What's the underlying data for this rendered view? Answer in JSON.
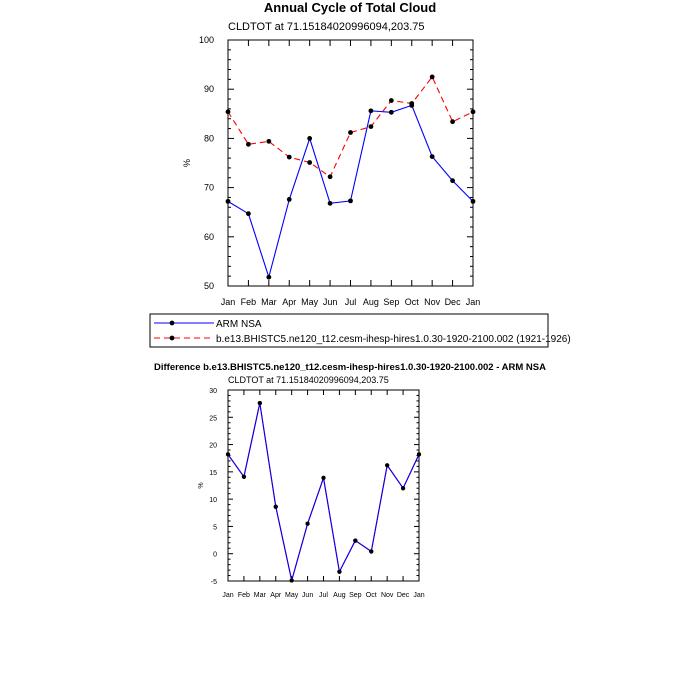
{
  "chart_data": [
    {
      "type": "line",
      "title": "Annual Cycle of Total Cloud",
      "subtitle": "CLDTOT at 71.15184020996094,203.75",
      "xlabel": "",
      "ylabel": "%",
      "categories": [
        "Jan",
        "Feb",
        "Mar",
        "Apr",
        "May",
        "Jun",
        "Jul",
        "Aug",
        "Sep",
        "Oct",
        "Nov",
        "Dec",
        "Jan"
      ],
      "ylim": [
        50,
        100
      ],
      "yticks": [
        50,
        60,
        70,
        80,
        90,
        100
      ],
      "series": [
        {
          "name": "ARM NSA",
          "color": "#0000ff",
          "dash": "solid",
          "values": [
            67.2,
            64.7,
            51.8,
            67.6,
            80.0,
            66.8,
            67.3,
            85.6,
            85.3,
            86.7,
            76.3,
            71.4,
            67.2
          ]
        },
        {
          "name": "b.e13.BHISTC5.ne120_t12.cesm-ihesp-hires1.0.30-1920-2100.002 (1921-1926)",
          "color": "#ff0000",
          "dash": "dashed",
          "values": [
            85.4,
            78.8,
            79.4,
            76.2,
            75.1,
            72.2,
            81.2,
            82.4,
            87.7,
            87.1,
            92.5,
            83.4,
            85.4
          ]
        }
      ],
      "legend": "below"
    },
    {
      "type": "line",
      "title": "Difference b.e13.BHISTC5.ne120_t12.cesm-ihesp-hires1.0.30-1920-2100.002 - ARM NSA",
      "subtitle": "CLDTOT at 71.15184020996094,203.75",
      "xlabel": "",
      "ylabel": "%",
      "categories": [
        "Jan",
        "Feb",
        "Mar",
        "Apr",
        "May",
        "Jun",
        "Jul",
        "Aug",
        "Sep",
        "Oct",
        "Nov",
        "Dec",
        "Jan"
      ],
      "ylim": [
        -5,
        30
      ],
      "yticks": [
        -5,
        0,
        5,
        10,
        15,
        20,
        25,
        30
      ],
      "series": [
        {
          "name": "Difference",
          "color": "#ff0000",
          "dash": "solid",
          "values": [
            18.2,
            14.1,
            27.6,
            8.6,
            -4.9,
            5.5,
            13.9,
            -3.3,
            2.4,
            0.4,
            16.2,
            12.0,
            18.2
          ]
        },
        {
          "name": "Difference",
          "color": "#0000ff",
          "dash": "solid",
          "values": [
            18.2,
            14.1,
            27.6,
            8.6,
            -4.9,
            5.5,
            13.9,
            -3.3,
            2.4,
            0.4,
            16.2,
            12.0,
            18.2
          ]
        }
      ]
    }
  ]
}
